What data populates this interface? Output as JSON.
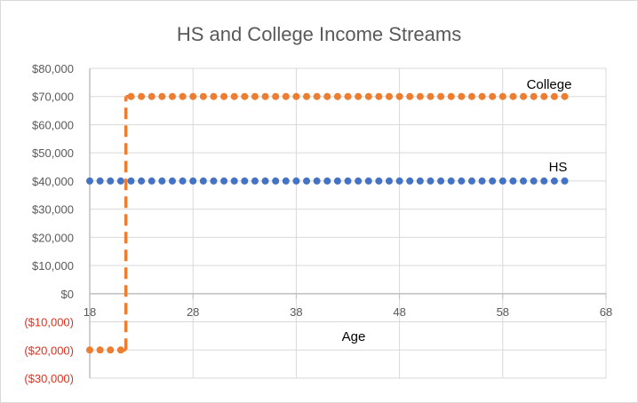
{
  "chart_data": {
    "type": "scatter",
    "title": "HS and College Income Streams",
    "xlabel": "Age",
    "ylabel": "",
    "xlim": [
      18,
      68
    ],
    "ylim": [
      -30000,
      80000
    ],
    "x_ticks": [
      18,
      28,
      38,
      48,
      58,
      68
    ],
    "y_ticks": [
      {
        "value": 80000,
        "label": "$80,000"
      },
      {
        "value": 70000,
        "label": "$70,000"
      },
      {
        "value": 60000,
        "label": "$60,000"
      },
      {
        "value": 50000,
        "label": "$50,000"
      },
      {
        "value": 40000,
        "label": "$40,000"
      },
      {
        "value": 30000,
        "label": "$30,000"
      },
      {
        "value": 20000,
        "label": "$20,000"
      },
      {
        "value": 10000,
        "label": "$10,000"
      },
      {
        "value": 0,
        "label": "$0"
      },
      {
        "value": -10000,
        "label": "($10,000)"
      },
      {
        "value": -20000,
        "label": "($20,000)"
      },
      {
        "value": -30000,
        "label": "($30,000)"
      }
    ],
    "grid": true,
    "negative_tick_color": "#e0301e",
    "series": [
      {
        "name": "HS",
        "color": "#4472c4",
        "style": "markers",
        "x_start": 18,
        "x_end": 64,
        "x_step": 1,
        "y": 40000
      },
      {
        "name": "College",
        "color": "#ed7d31",
        "style": "markers",
        "segments": [
          {
            "x_start": 18,
            "x_end": 21,
            "x_step": 1,
            "y": -20000
          },
          {
            "x_start": 22,
            "x_end": 64,
            "x_step": 1,
            "y": 70000
          }
        ],
        "step_line": {
          "x": 21.5,
          "y_from": -20000,
          "y_to": 70000,
          "dashed": true
        }
      }
    ]
  }
}
